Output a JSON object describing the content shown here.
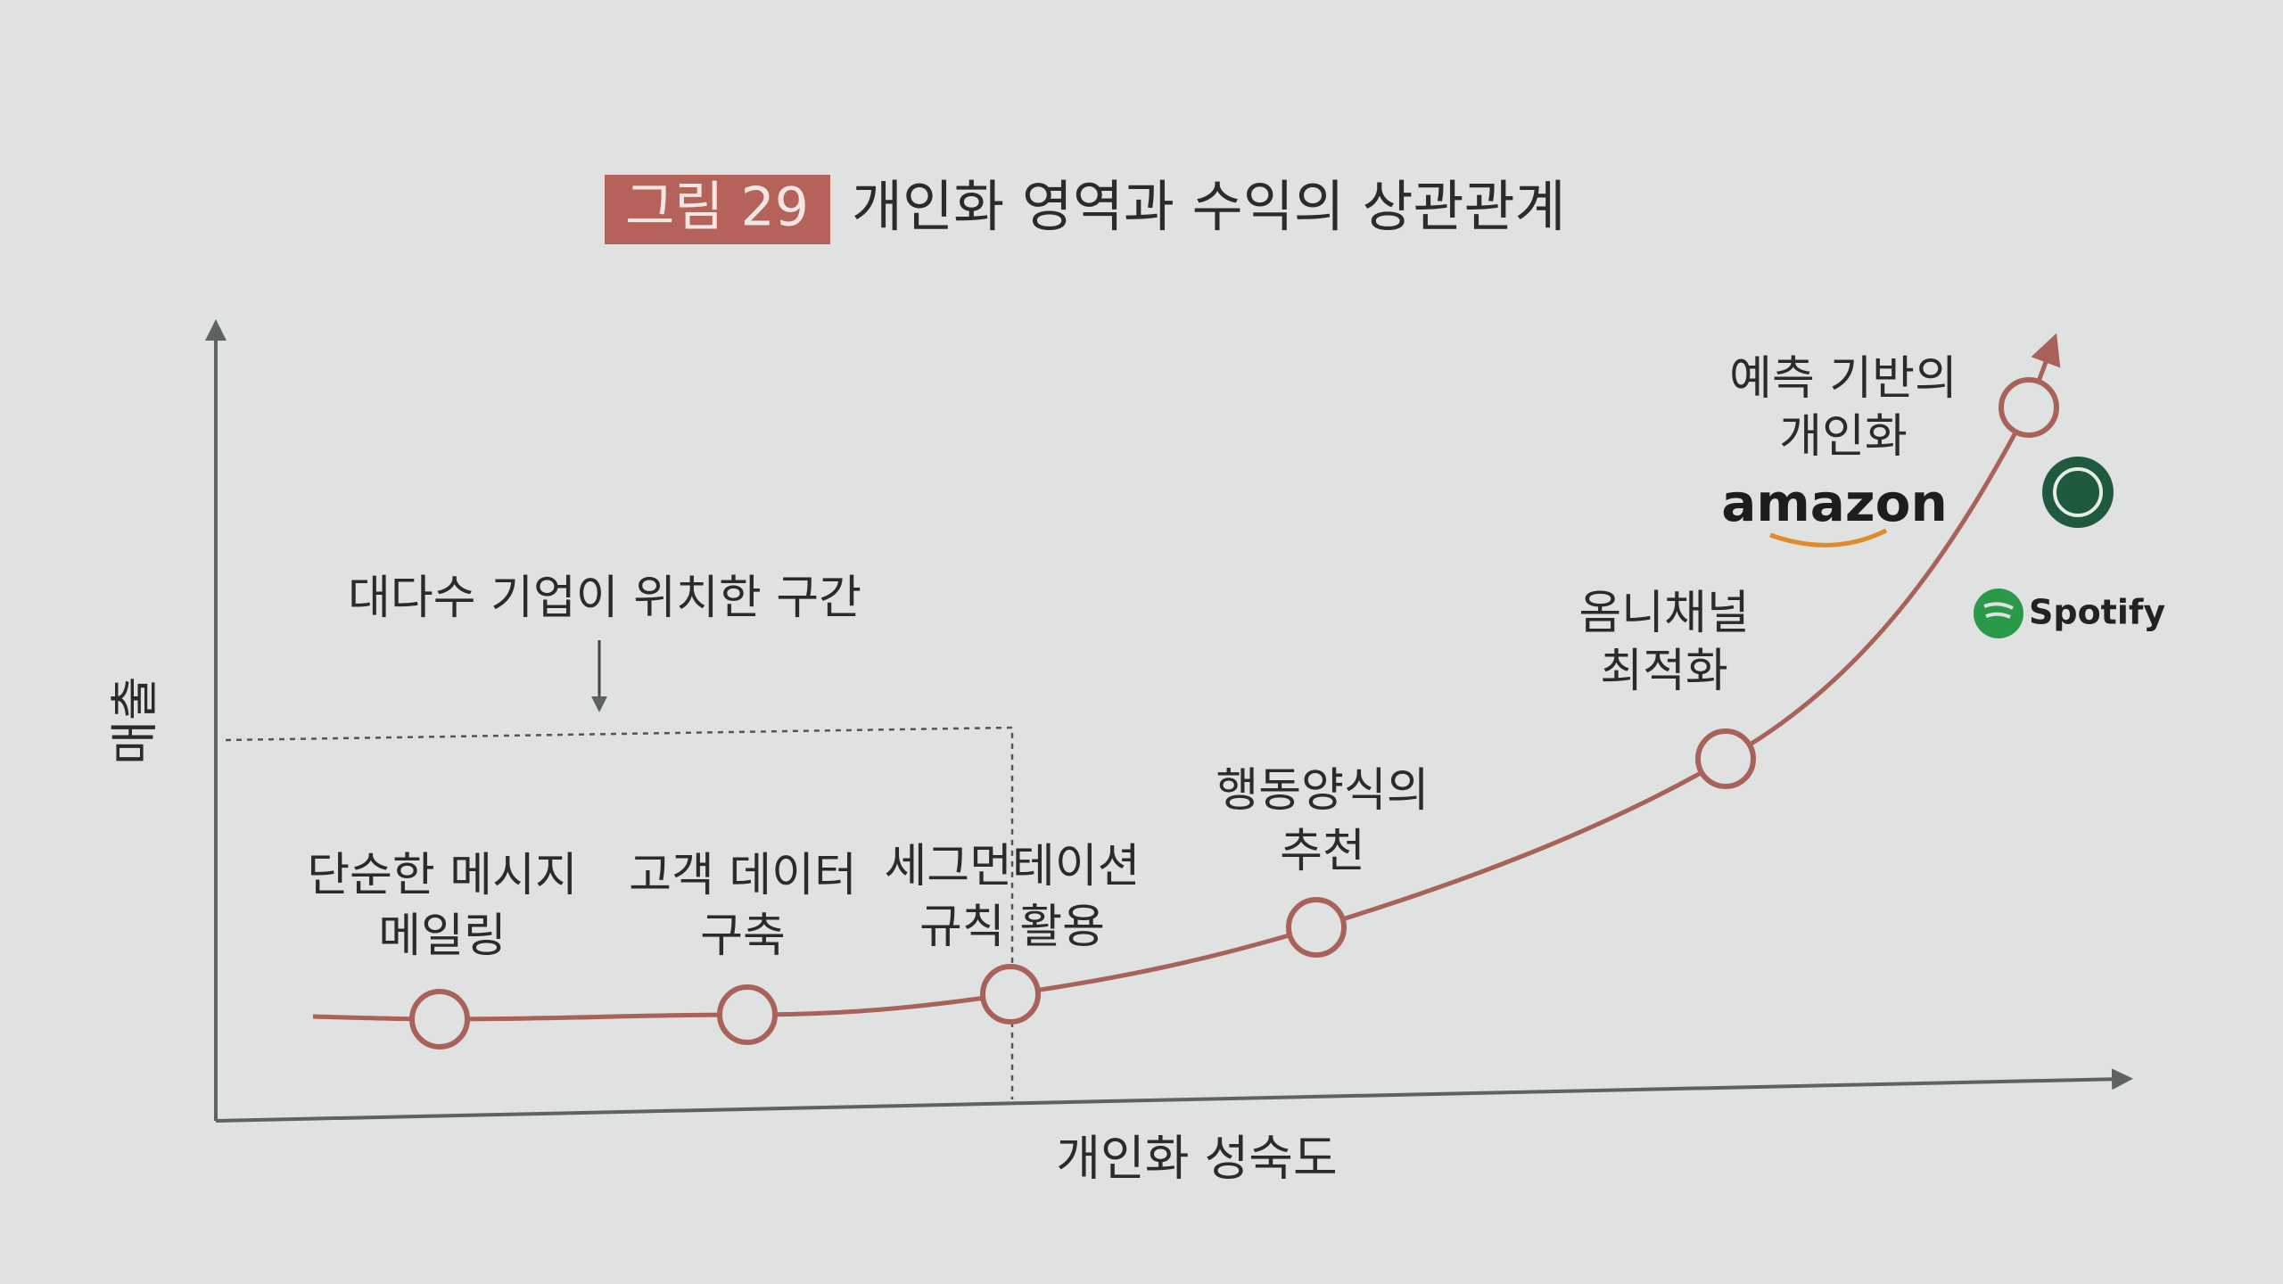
{
  "figure": {
    "label": "그림 29",
    "title": "개인화 영역과 수익의 상관관계"
  },
  "axes": {
    "y_label": "매출",
    "x_label": "개인화 성숙도"
  },
  "zone": {
    "label": "대다수 기업이 위치한 구간"
  },
  "nodes": [
    {
      "lines": [
        "단순한 메시지",
        "메일링"
      ]
    },
    {
      "lines": [
        "고객 데이터",
        "구축"
      ]
    },
    {
      "lines": [
        "세그먼테이션",
        "규칙 활용"
      ]
    },
    {
      "lines": [
        "행동양식의",
        "추천"
      ]
    },
    {
      "lines": [
        "옴니채널",
        "최적화"
      ]
    },
    {
      "lines": [
        "예측 기반의",
        "개인화"
      ]
    }
  ],
  "brands": [
    "amazon",
    "Spotify"
  ]
}
